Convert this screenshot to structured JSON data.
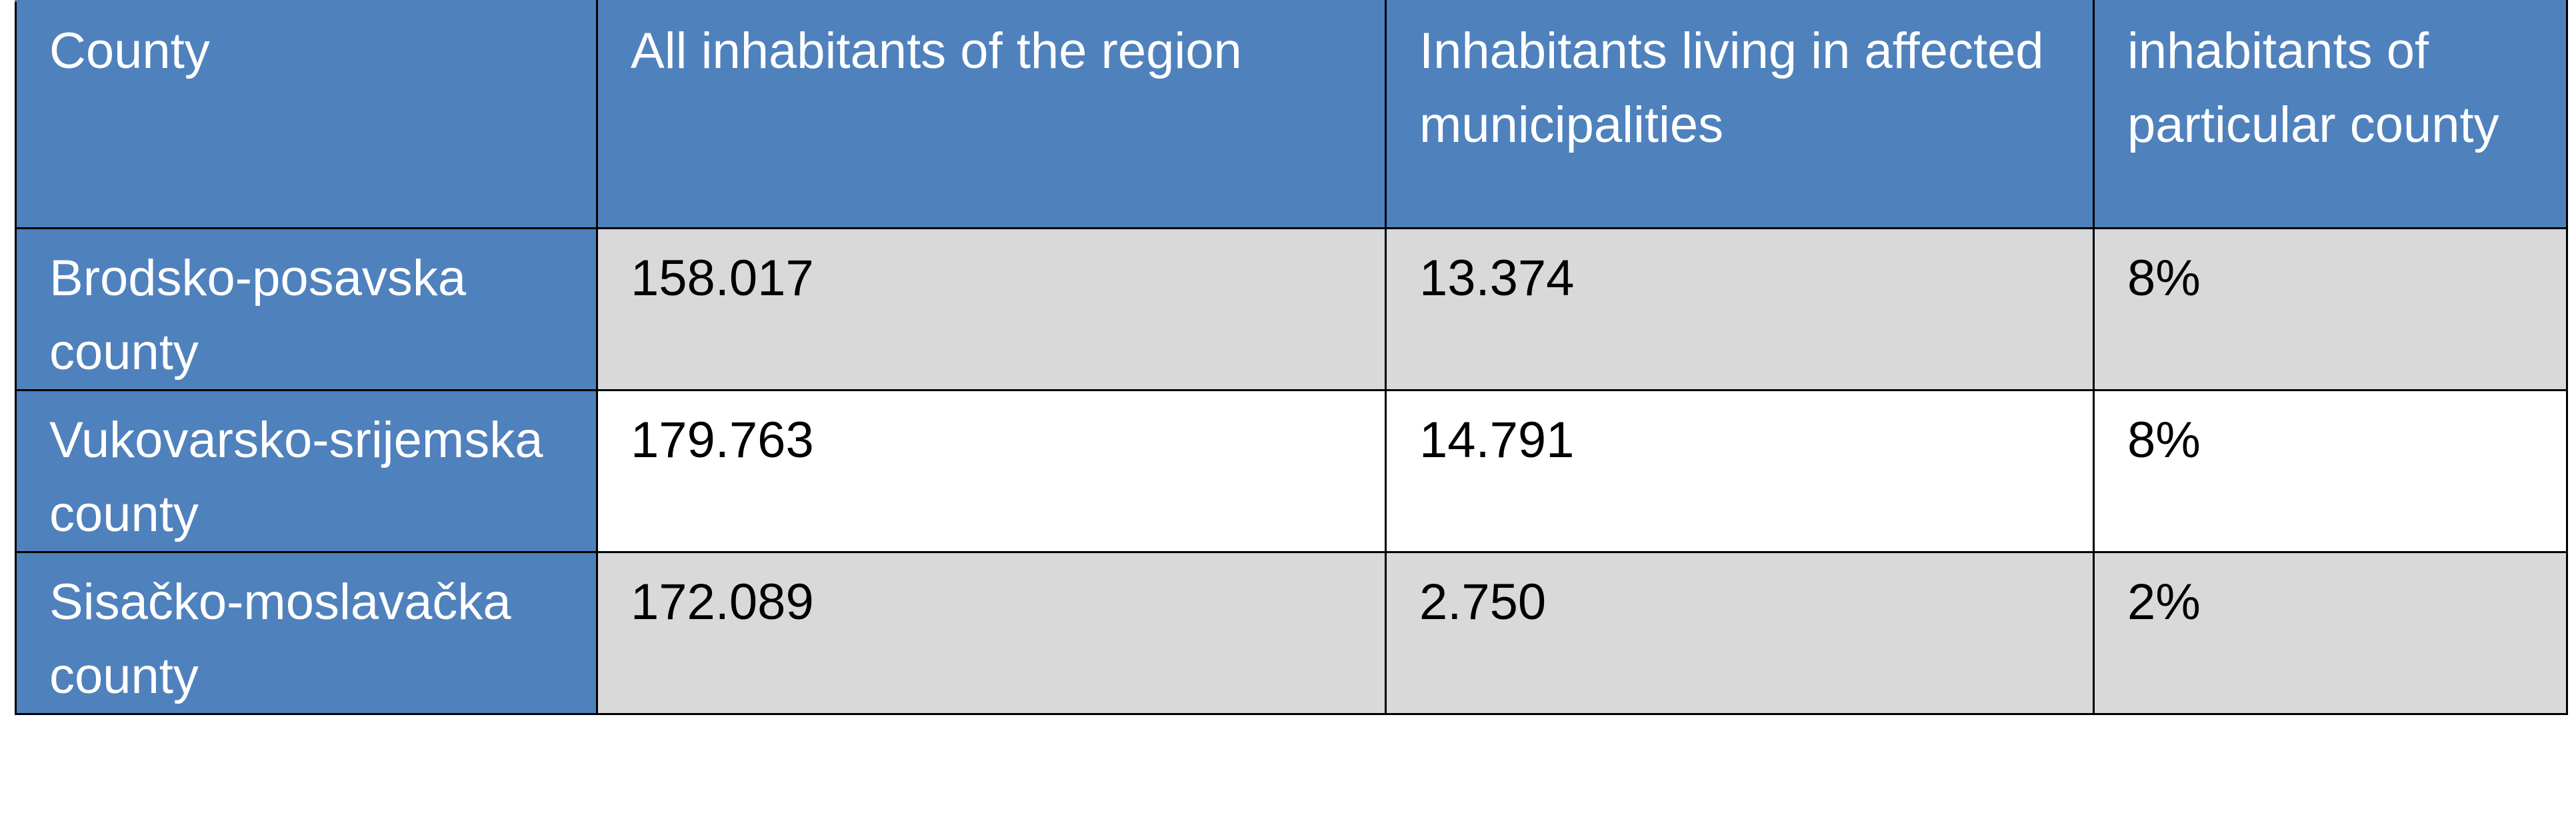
{
  "table": {
    "header": [
      "County",
      "All inhabitants of the region",
      "Inhabitants living in affected municipalities",
      "inhabitants of particular county"
    ],
    "rows": [
      [
        "Brodsko-posavska county",
        "158.017",
        "13.374",
        "8%"
      ],
      [
        "Vukovarsko-srijemska county",
        "179.763",
        "14.791",
        "8%"
      ],
      [
        "Sisačko-moslavačka county",
        "172.089",
        "2.750",
        "2%"
      ]
    ]
  }
}
